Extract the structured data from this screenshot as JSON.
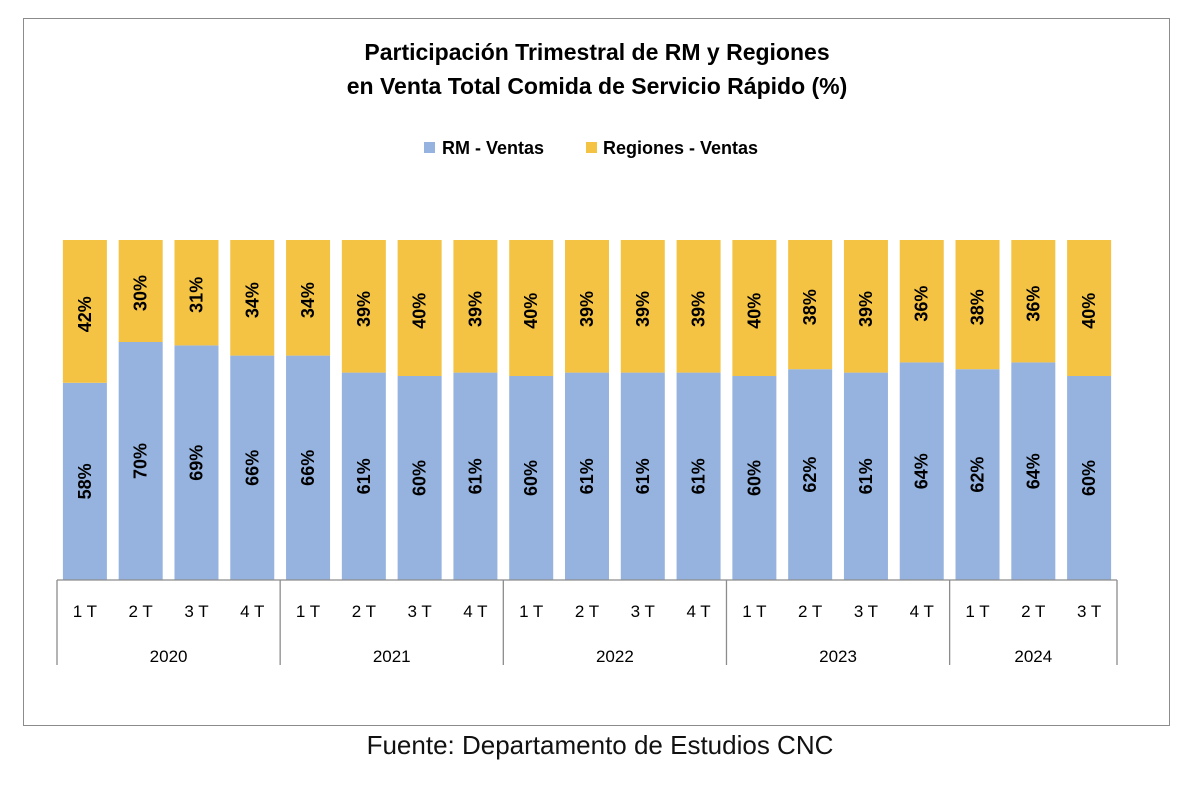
{
  "chart_data": {
    "type": "bar",
    "stacked": true,
    "title_lines": [
      "Participación Trimestral de RM y Regiones",
      "en Venta Total Comida de Servicio Rápido (%)"
    ],
    "legend": [
      "RM - Ventas",
      "Regiones - Ventas"
    ],
    "legend_position": "top-center",
    "colors": {
      "rm": "#95B3DE",
      "regiones": "#F4C344",
      "axis": "#8c8c8c"
    },
    "quarters": [
      "1 T",
      "2 T",
      "3 T",
      "4 T",
      "1 T",
      "2 T",
      "3 T",
      "4 T",
      "1 T",
      "2 T",
      "3 T",
      "4 T",
      "1 T",
      "2 T",
      "3 T",
      "4 T",
      "1 T",
      "2 T",
      "3 T"
    ],
    "years": [
      {
        "label": "2020",
        "count": 4
      },
      {
        "label": "2021",
        "count": 4
      },
      {
        "label": "2022",
        "count": 4
      },
      {
        "label": "2023",
        "count": 4
      },
      {
        "label": "2024",
        "count": 3
      }
    ],
    "series": [
      {
        "name": "RM - Ventas",
        "values": [
          58,
          70,
          69,
          66,
          66,
          61,
          60,
          61,
          60,
          61,
          61,
          61,
          60,
          62,
          61,
          64,
          62,
          64,
          60
        ]
      },
      {
        "name": "Regiones - Ventas",
        "values": [
          42,
          30,
          31,
          34,
          34,
          39,
          40,
          39,
          40,
          39,
          39,
          39,
          40,
          38,
          39,
          36,
          38,
          36,
          40
        ]
      }
    ],
    "ylim": [
      0,
      100
    ],
    "grid": false
  },
  "source": "Fuente: Departamento de Estudios CNC"
}
